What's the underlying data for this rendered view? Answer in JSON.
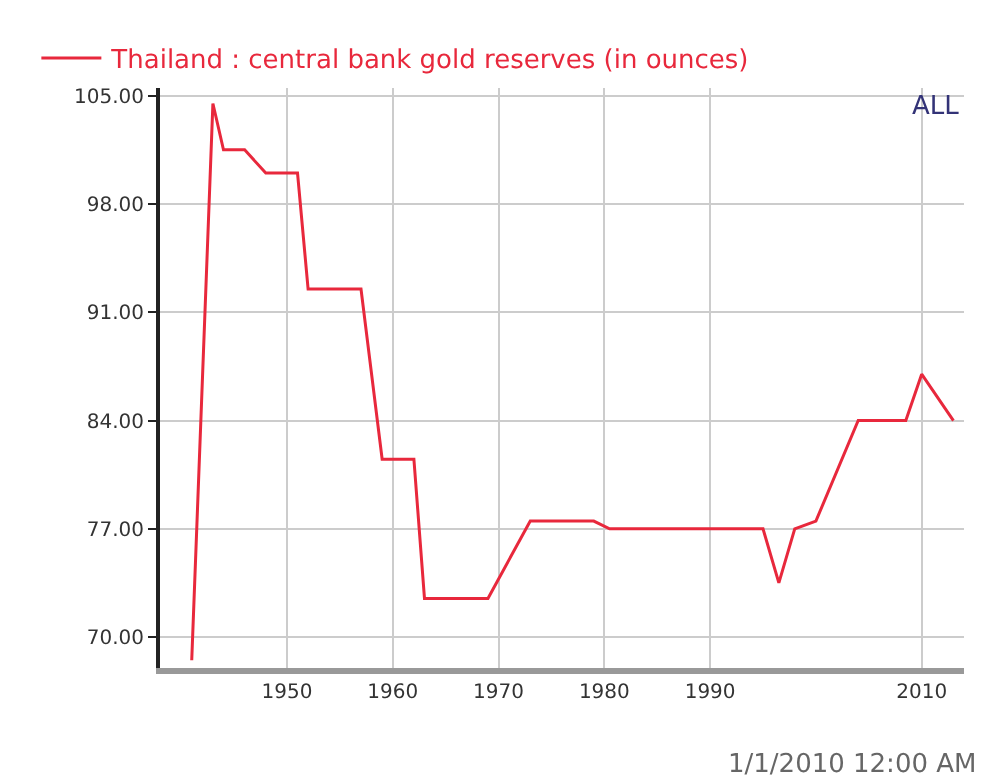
{
  "chart_data": {
    "type": "line",
    "x": [
      1941,
      1943,
      1944,
      1946,
      1948,
      1951,
      1952,
      1957,
      1959,
      1962,
      1963,
      1969,
      1973,
      1979,
      1980.5,
      1995,
      1996.5,
      1998,
      2000,
      2004,
      2008.5,
      2010,
      2013
    ],
    "series": [
      {
        "name": "Thailand : central bank gold reserves (in ounces)",
        "color": "#e8283c",
        "values": [
          68.5,
          104.5,
          101.5,
          101.5,
          100,
          100,
          92.5,
          92.5,
          81.5,
          81.5,
          72.5,
          72.5,
          77.5,
          77.5,
          77,
          77,
          73.5,
          77,
          77.5,
          84,
          84,
          87,
          84
        ]
      }
    ],
    "xlim": [
      1938,
      2014
    ],
    "xticks": [
      1950,
      1960,
      1970,
      1980,
      1990,
      2010
    ],
    "ylim": [
      68,
      105.5
    ],
    "yticks": [
      {
        "value": 70,
        "label": "70.00"
      },
      {
        "value": 77,
        "label": "77.00"
      },
      {
        "value": 84,
        "label": "84.00"
      },
      {
        "value": 91,
        "label": "91.00"
      },
      {
        "value": 98,
        "label": "98.00"
      },
      {
        "value": 105,
        "label": "105.00"
      }
    ],
    "annotations": [
      "ALL",
      "1/1/2010 12:00 AM"
    ],
    "grid": true,
    "legend": "top left",
    "marker": "none",
    "line_style": "solid"
  }
}
